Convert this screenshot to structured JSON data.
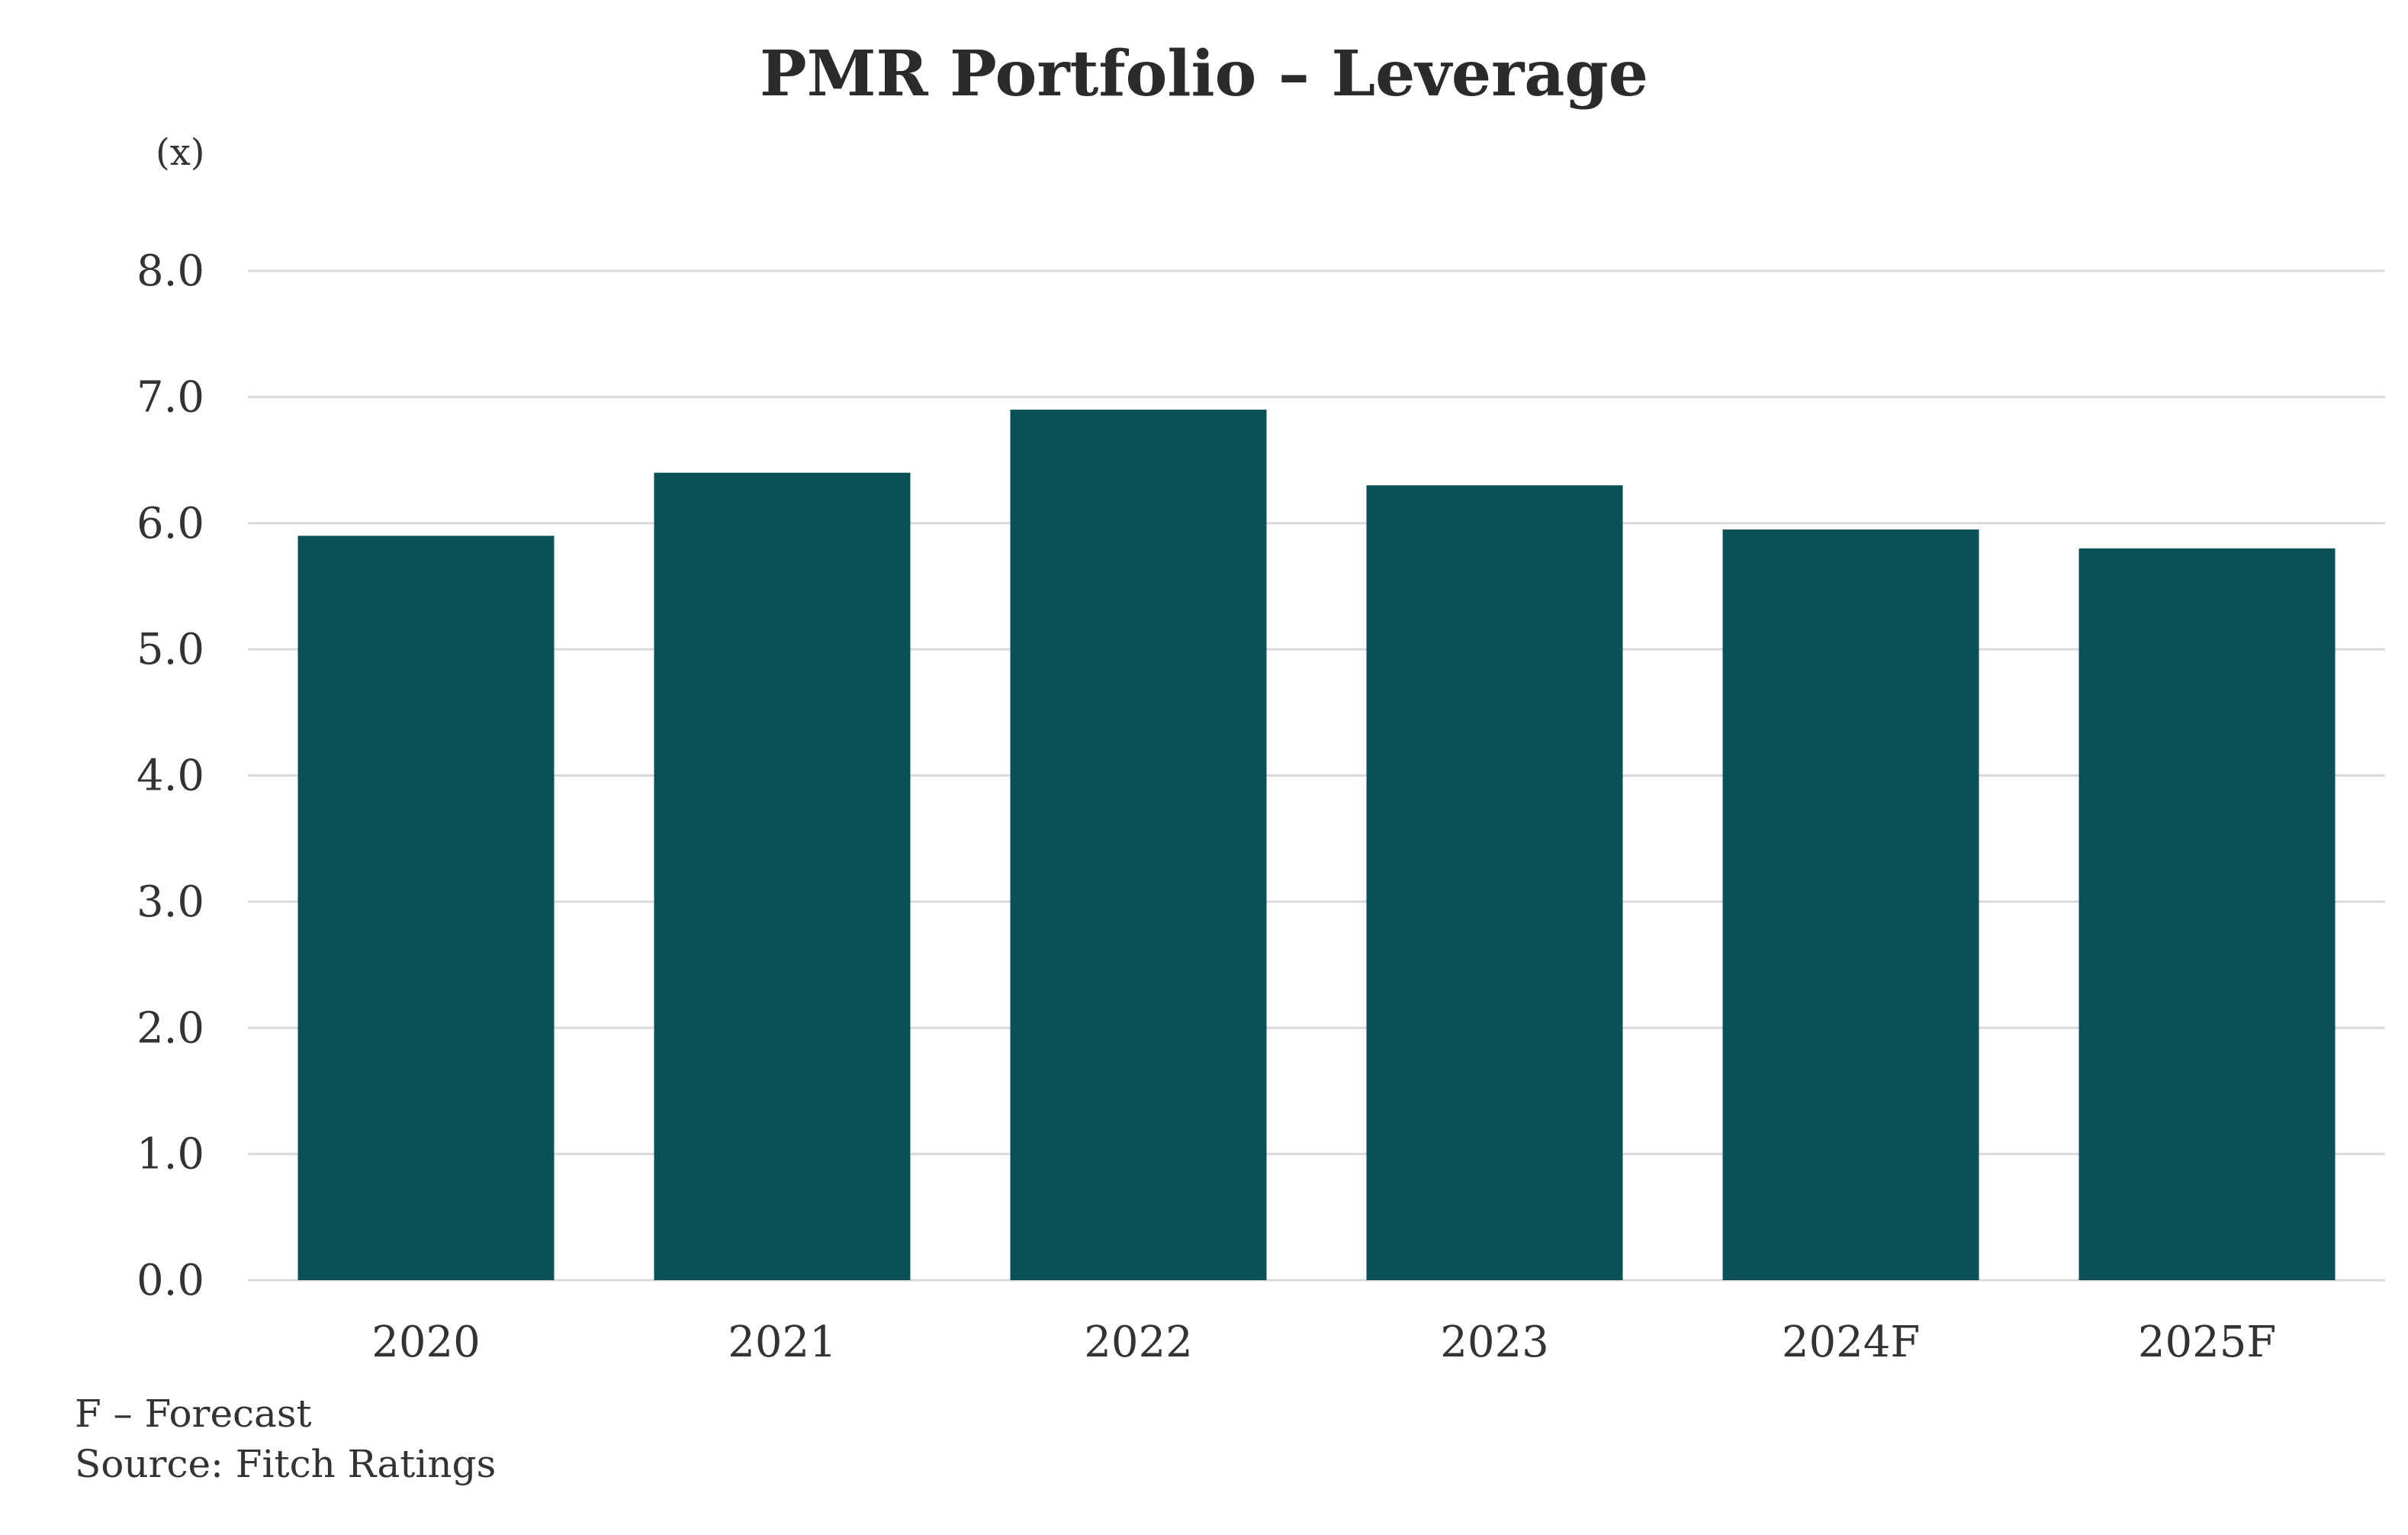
{
  "chart_data": {
    "type": "bar",
    "title": "PMR Portfolio – Leverage",
    "y_unit_label": "(x)",
    "xlabel": "",
    "ylabel": "",
    "categories": [
      "2020",
      "2021",
      "2022",
      "2023",
      "2024F",
      "2025F"
    ],
    "values": [
      5.9,
      6.4,
      6.9,
      6.3,
      5.95,
      5.8
    ],
    "ylim": [
      0,
      8
    ],
    "yticks": [
      0,
      1,
      2,
      3,
      4,
      5,
      6,
      7,
      8
    ],
    "ytick_labels": [
      "0.0",
      "1.0",
      "2.0",
      "3.0",
      "4.0",
      "5.0",
      "6.0",
      "7.0",
      "8.0"
    ],
    "bar_color": "#0a5157",
    "grid": true,
    "legend": "none"
  },
  "footnotes": {
    "forecast_note": "F – Forecast",
    "source": "Source: Fitch Ratings"
  }
}
